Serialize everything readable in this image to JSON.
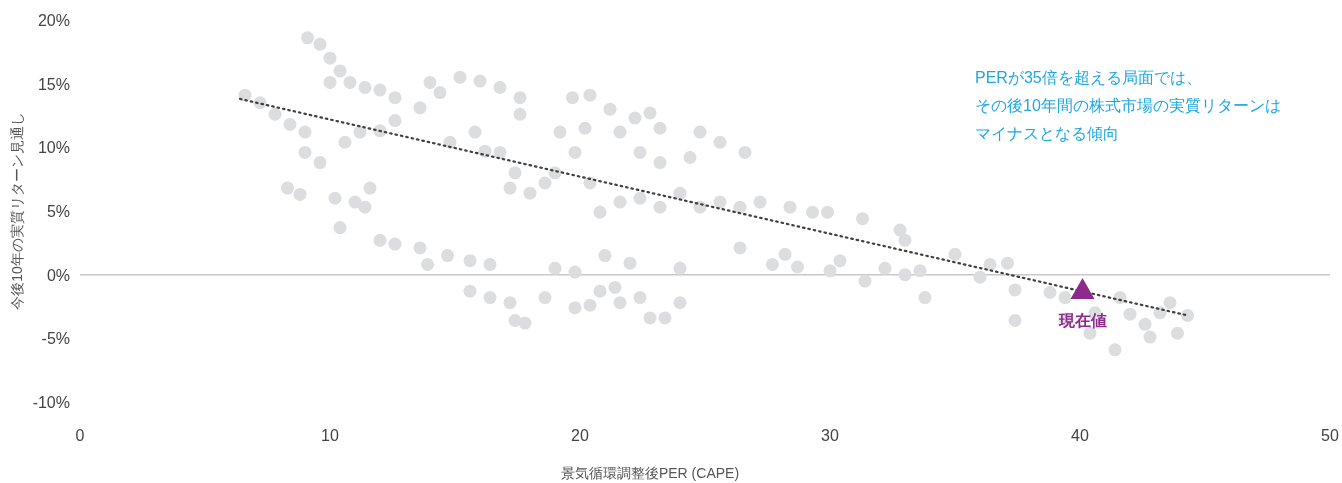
{
  "chart_data": {
    "type": "scatter",
    "xlabel": "景気循環調整後PER (CAPE)",
    "ylabel": "今後10年の実質リターン見通し",
    "annotations": [
      "PERが35倍を超える局面では、",
      "その後10年間の株式市場の実質リターンは",
      "マイナスとなる傾向"
    ],
    "xlim": [
      0,
      50
    ],
    "ylim": [
      -10,
      20
    ],
    "xticks": [
      0,
      10,
      20,
      30,
      40,
      50
    ],
    "yticks": [
      {
        "value": -10,
        "label": "-10%"
      },
      {
        "value": -5,
        "label": "-5%"
      },
      {
        "value": 0,
        "label": "0%"
      },
      {
        "value": 5,
        "label": "5%"
      },
      {
        "value": 10,
        "label": "10%"
      },
      {
        "value": 15,
        "label": "15%"
      },
      {
        "value": 20,
        "label": "20%"
      }
    ],
    "ref_lines": [
      {
        "axis": "y",
        "value": 0,
        "color": "#c8c8c8"
      }
    ],
    "series": [
      {
        "color": "#dcdddf",
        "marker": "circle",
        "x": [
          6.6,
          7.2,
          7.8,
          8.4,
          9.0,
          9.1,
          9.6,
          10.0,
          10.4,
          10.8,
          11.4,
          12.0,
          12.6,
          10.0,
          9.0,
          9.6,
          10.6,
          11.2,
          10.2,
          11.0,
          11.6,
          11.4,
          8.3,
          8.8,
          10.4,
          12.0,
          12.6,
          13.6,
          14.4,
          15.2,
          16.0,
          16.8,
          17.6,
          17.6,
          14.0,
          14.8,
          15.8,
          16.2,
          16.8,
          17.4,
          17.2,
          18.0,
          18.6,
          19.0,
          19.2,
          19.8,
          20.2,
          19.7,
          20.4,
          21.2,
          21.6,
          22.2,
          22.8,
          23.2,
          22.4,
          23.2,
          24.4,
          24.8,
          25.6,
          26.6,
          20.4,
          20.8,
          21.6,
          22.4,
          23.2,
          24.0,
          24.8,
          25.6,
          26.4,
          27.2,
          28.4,
          29.3,
          29.9,
          31.3,
          32.8,
          33.0,
          26.4,
          12.0,
          12.6,
          13.6,
          13.9,
          14.7,
          15.6,
          16.4,
          15.6,
          16.4,
          17.2,
          17.4,
          17.8,
          18.6,
          19.0,
          19.8,
          19.8,
          20.4,
          20.8,
          21.4,
          21.6,
          22.4,
          22.8,
          23.4,
          24.0,
          22.0,
          21.0,
          24.0,
          27.7,
          28.2,
          28.7,
          30.0,
          30.4,
          31.4,
          32.2,
          33.0,
          33.8,
          33.6,
          35.0,
          36.0,
          36.4,
          37.1,
          37.4,
          37.4,
          38.8,
          39.4,
          39.4,
          40.4,
          40.6,
          41.4,
          42.0,
          42.6,
          42.8,
          43.2,
          43.6,
          43.9,
          44.3,
          41.6
        ],
        "values": [
          14.1,
          13.5,
          12.6,
          11.8,
          11.2,
          18.6,
          18.1,
          17.0,
          16.0,
          15.1,
          14.7,
          14.5,
          13.9,
          15.1,
          9.6,
          8.8,
          10.4,
          11.2,
          6.0,
          5.7,
          6.8,
          5.3,
          6.8,
          6.3,
          3.7,
          11.3,
          12.1,
          13.1,
          14.3,
          15.5,
          15.2,
          14.7,
          13.9,
          12.6,
          15.1,
          10.4,
          11.2,
          9.7,
          9.6,
          8.0,
          6.8,
          6.4,
          7.2,
          8.0,
          11.2,
          9.6,
          11.5,
          13.9,
          14.1,
          13.0,
          11.2,
          12.3,
          12.7,
          11.5,
          9.6,
          8.8,
          9.2,
          11.2,
          10.4,
          9.6,
          7.2,
          4.9,
          5.7,
          6.0,
          5.3,
          6.4,
          5.3,
          5.7,
          5.3,
          5.7,
          5.3,
          4.9,
          4.9,
          4.4,
          3.5,
          2.7,
          2.1,
          2.7,
          2.4,
          2.1,
          0.8,
          1.5,
          1.1,
          0.8,
          -1.3,
          -1.8,
          -2.2,
          -3.6,
          -3.8,
          -1.8,
          0.5,
          0.2,
          -2.6,
          -2.4,
          -1.3,
          -1.0,
          -2.2,
          -1.8,
          -3.4,
          -3.4,
          -2.2,
          0.9,
          1.5,
          0.5,
          0.8,
          1.6,
          0.6,
          0.3,
          1.1,
          -0.5,
          0.5,
          0.0,
          -1.8,
          0.3,
          1.6,
          -0.2,
          0.8,
          0.9,
          -1.2,
          -3.6,
          -1.4,
          -1.8,
          -3.5,
          -4.6,
          -3.0,
          -5.9,
          -3.1,
          -3.9,
          -4.9,
          -3.0,
          -2.2,
          -4.6,
          -3.2,
          -1.8
        ]
      },
      {
        "type": "line",
        "color": "#404040",
        "line_style": "dotted",
        "marker": "none",
        "x": [
          6.4,
          44.3
        ],
        "values": [
          13.8,
          -3.2
        ]
      },
      {
        "type": "scatter",
        "name": "現在値",
        "color": "#8e2a8e",
        "marker": "triangle",
        "x": [
          40.1
        ],
        "values": [
          -1.2
        ]
      }
    ]
  }
}
